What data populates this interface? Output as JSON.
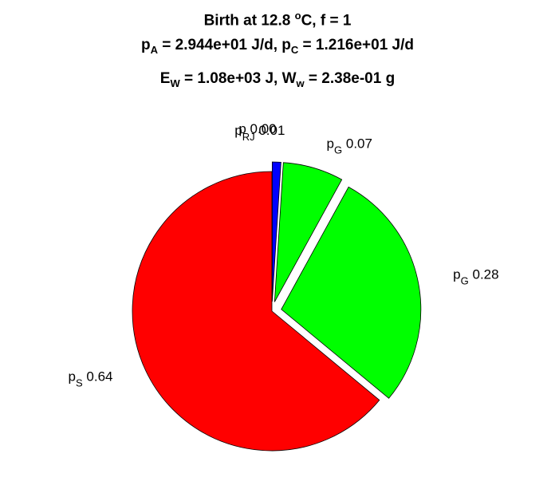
{
  "chart_data": {
    "type": "pie",
    "title_lines": [
      {
        "parts": [
          {
            "text": "Birth at 12.8 "
          },
          {
            "text": "o",
            "style": "sup"
          },
          {
            "text": "C, f = 1"
          }
        ]
      },
      {
        "parts": [
          {
            "text": "p"
          },
          {
            "text": "A",
            "style": "sub"
          },
          {
            "text": " = 2.944e+01 J/d, p"
          },
          {
            "text": "C",
            "style": "sub"
          },
          {
            "text": " = 1.216e+01 J/d"
          }
        ]
      },
      {
        "parts": [
          {
            "text": "E"
          },
          {
            "text": "W",
            "style": "sub"
          },
          {
            "text": " = 1.08e+03 J, W"
          },
          {
            "text": "w",
            "style": "sub"
          },
          {
            "text": " = 2.38e-01 g"
          }
        ]
      }
    ],
    "slices": [
      {
        "label_main": "p",
        "label_sub": "RJ",
        "value_text": "0.01",
        "value": 0.01,
        "color": "#0000ff",
        "exploded": true
      },
      {
        "label_main": "p",
        "label_sub": "G",
        "value_text": "0.07",
        "value": 0.07,
        "color": "#00ff00",
        "exploded": true
      },
      {
        "label_main": "p",
        "label_sub": "G",
        "value_text": "0.28",
        "value": 0.28,
        "color": "#00ff00",
        "exploded": true
      },
      {
        "label_main": "p",
        "label_sub": "S",
        "value_text": "0.64",
        "value": 0.64,
        "color": "#ff0000",
        "exploded": false
      },
      {
        "label_main": "p",
        "label_sub": "",
        "value_text": "0.00",
        "value": 0.0,
        "color": "#ffff00",
        "exploded": true
      }
    ],
    "start_angle_deg": 0,
    "direction": "clockwise",
    "legend": "none"
  }
}
